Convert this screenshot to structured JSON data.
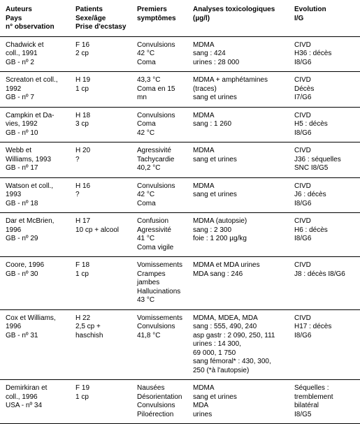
{
  "columns": [
    {
      "lines": [
        "Auteurs",
        "Pays",
        "n° observation"
      ]
    },
    {
      "lines": [
        "Patients",
        "Sexe/âge",
        "Prise d'ecstasy"
      ]
    },
    {
      "lines": [
        "Premiers",
        "symptômes"
      ]
    },
    {
      "lines": [
        "Analyses toxicologiques",
        "(µg/l)"
      ]
    },
    {
      "lines": [
        "Evolution",
        "I/G"
      ]
    }
  ],
  "rows": [
    {
      "cells": [
        {
          "lines": [
            "Chadwick et",
            "coll., 1991",
            "GB - nº 2"
          ]
        },
        {
          "lines": [
            "F 16",
            "2 cp"
          ]
        },
        {
          "lines": [
            "Convulsions",
            "42 °C",
            "Coma"
          ]
        },
        {
          "lines": [
            "MDMA",
            "sang : 424",
            "urines : 28 000"
          ]
        },
        {
          "lines": [
            "CIVD",
            "H36 : décès",
            "I8/G6"
          ]
        }
      ]
    },
    {
      "cells": [
        {
          "lines": [
            "Screaton et coll.,",
            "1992",
            "GB - nº 7"
          ]
        },
        {
          "lines": [
            "H 19",
            "1 cp"
          ]
        },
        {
          "lines": [
            "43,3 °C",
            "Coma en 15 mn"
          ]
        },
        {
          "lines": [
            "MDMA + amphétamines",
            "(traces)",
            "sang et urines"
          ]
        },
        {
          "lines": [
            "CIVD",
            "Décès",
            "I7/G6"
          ]
        }
      ]
    },
    {
      "cells": [
        {
          "lines": [
            "Campkin et Da-",
            "vies, 1992",
            "GB - nº 10"
          ]
        },
        {
          "lines": [
            "H 18",
            "3 cp"
          ]
        },
        {
          "lines": [
            "Convulsions",
            "Coma",
            "42 °C"
          ]
        },
        {
          "lines": [
            "MDMA",
            "sang : 1 260"
          ]
        },
        {
          "lines": [
            "CIVD",
            "H5 : décès",
            "I8/G6"
          ]
        }
      ]
    },
    {
      "cells": [
        {
          "lines": [
            "Webb et",
            "Williams, 1993",
            "GB - nº 17"
          ]
        },
        {
          "lines": [
            "H 20",
            "?"
          ]
        },
        {
          "lines": [
            "Agressivité",
            "Tachycardie",
            "40,2 °C"
          ]
        },
        {
          "lines": [
            "MDMA",
            "sang et urines"
          ]
        },
        {
          "lines": [
            "CIVD",
            "J36 : séquelles",
            "SNC I8/G5"
          ]
        }
      ]
    },
    {
      "cells": [
        {
          "lines": [
            "Watson et coll.,",
            "1993",
            "GB - nº 18"
          ]
        },
        {
          "lines": [
            "H 16",
            "?"
          ]
        },
        {
          "lines": [
            "Convulsions",
            "42 °C",
            "Coma"
          ]
        },
        {
          "lines": [
            "MDMA",
            "sang et urines"
          ]
        },
        {
          "lines": [
            "CIVD",
            "J6 : décès",
            "I8/G6"
          ]
        }
      ]
    },
    {
      "cells": [
        {
          "lines": [
            "Dar et McBrien,",
            "1996",
            "",
            "GB - nº 29"
          ]
        },
        {
          "lines": [
            "H 17",
            "10 cp + alcool"
          ]
        },
        {
          "lines": [
            "Confusion",
            "Agressivité",
            "41 °C",
            "Coma vigile"
          ]
        },
        {
          "lines": [
            "MDMA (autopsie)",
            "sang : 2 300",
            "foie : 1 200 µg/kg"
          ]
        },
        {
          "lines": [
            "CIVD",
            "H6 : décès",
            "I8/G6"
          ]
        }
      ]
    },
    {
      "cells": [
        {
          "lines": [
            "Coore, 1996",
            "GB - nº 30"
          ]
        },
        {
          "lines": [
            "F 18",
            "1 cp"
          ]
        },
        {
          "lines": [
            "Vomissements",
            "Crampes jambes",
            "Hallucinations",
            "43 °C"
          ]
        },
        {
          "lines": [
            "MDMA et MDA urines",
            "MDA sang : 246"
          ]
        },
        {
          "lines": [
            "CIVD",
            "J8 : décès I8/G6"
          ]
        }
      ]
    },
    {
      "cells": [
        {
          "lines": [
            "Cox et Williams,",
            "1996",
            "",
            "GB - nº 31"
          ]
        },
        {
          "lines": [
            "H 22",
            "2,5 cp + haschish"
          ]
        },
        {
          "lines": [
            "Vomissements",
            "Convulsions",
            "41,8 °C"
          ]
        },
        {
          "lines": [
            "MDMA, MDEA, MDA",
            "sang : 555, 490, 240",
            "asp gastr : 2 090, 250, 111",
            "urines : 14 300,",
            "69 000, 1 750",
            "sang fémoral* : 430, 300,",
            "250 (*à l'autopsie)"
          ]
        },
        {
          "lines": [
            "CIVD",
            "H17 : décès",
            "I8/G6"
          ]
        }
      ]
    },
    {
      "cells": [
        {
          "lines": [
            "Demirkiran et",
            "coll., 1996",
            "USA - nº 34"
          ]
        },
        {
          "lines": [
            "F 19",
            "1 cp"
          ]
        },
        {
          "lines": [
            "Nausées",
            "Désorientation",
            "Convulsions",
            "Piloérection"
          ]
        },
        {
          "lines": [
            "MDMA",
            "sang et urines",
            "MDA",
            "urines"
          ]
        },
        {
          "lines": [
            "Séquelles :",
            "tremblement",
            "bilatéral",
            "I8/G5"
          ]
        }
      ]
    }
  ]
}
